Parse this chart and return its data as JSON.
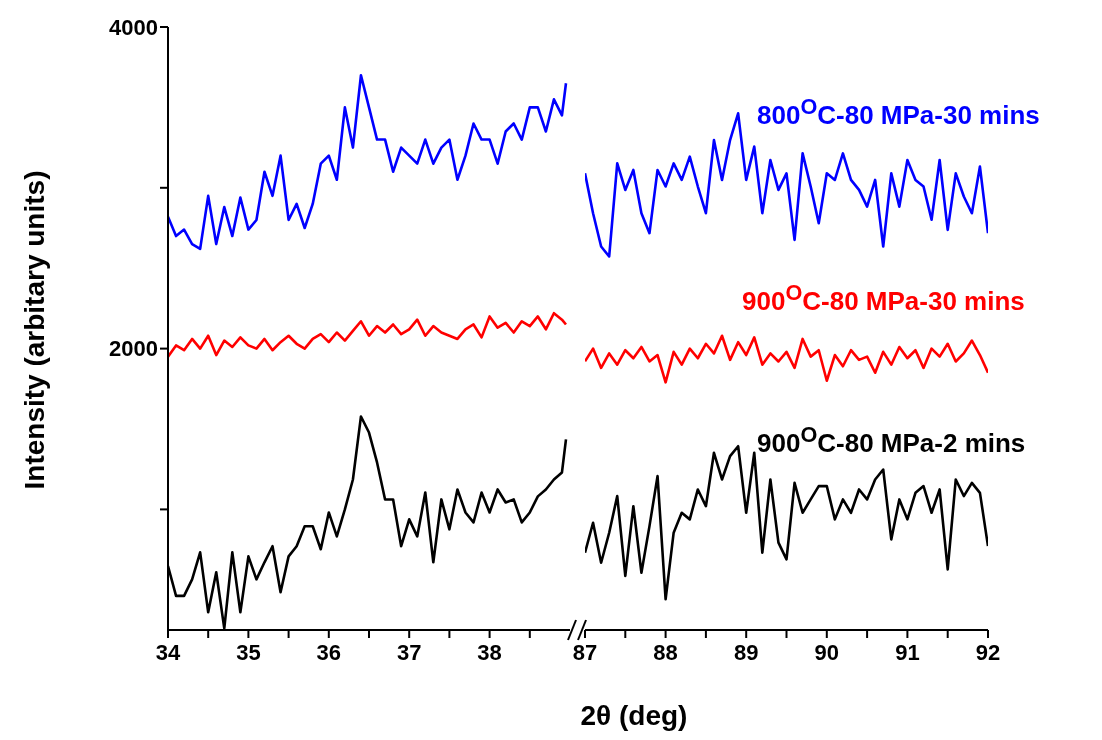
{
  "chart_data": [
    {
      "type": "line",
      "xlabel": "2θ (deg)",
      "ylabel": "Intensity (arbitary units)",
      "x": [
        34.0,
        34.1,
        34.2,
        34.3,
        34.4,
        34.5,
        34.6,
        34.7,
        34.8,
        34.9,
        35.0,
        35.1,
        35.2,
        35.3,
        35.4,
        35.5,
        35.6,
        35.7,
        35.8,
        35.9,
        36.0,
        36.1,
        36.2,
        36.3,
        36.4,
        36.5,
        36.6,
        36.7,
        36.8,
        36.9,
        37.0,
        37.1,
        37.2,
        37.3,
        37.4,
        37.5,
        37.6,
        37.7,
        37.8,
        37.9,
        38.0,
        38.1,
        38.2,
        38.3,
        38.4,
        38.5,
        38.6,
        38.7,
        38.8,
        38.9,
        38.95
      ],
      "series": [
        {
          "color": "#0000ff",
          "values": [
            2820,
            2700,
            2740,
            2650,
            2620,
            2950,
            2650,
            2880,
            2700,
            2940,
            2740,
            2800,
            3100,
            2950,
            3200,
            2800,
            2900,
            2750,
            2900,
            3150,
            3200,
            3050,
            3500,
            3250,
            3700,
            3500,
            3300,
            3300,
            3100,
            3250,
            3200,
            3150,
            3300,
            3150,
            3250,
            3300,
            3050,
            3200,
            3400,
            3300,
            3300,
            3150,
            3350,
            3400,
            3300,
            3500,
            3500,
            3350,
            3550,
            3450,
            3650
          ]
        },
        {
          "color": "#ff0000",
          "values": [
            1950,
            2020,
            1990,
            2060,
            2000,
            2080,
            1960,
            2050,
            2010,
            2070,
            2020,
            2000,
            2060,
            1990,
            2040,
            2080,
            2030,
            2000,
            2060,
            2090,
            2040,
            2100,
            2050,
            2110,
            2170,
            2080,
            2140,
            2100,
            2150,
            2090,
            2120,
            2180,
            2080,
            2140,
            2100,
            2080,
            2060,
            2120,
            2150,
            2070,
            2200,
            2130,
            2160,
            2100,
            2170,
            2140,
            2200,
            2120,
            2220,
            2180,
            2150
          ]
        },
        {
          "color": "#000000",
          "values": [
            648,
            462,
            462,
            565,
            733,
            360,
            609,
            260,
            733,
            360,
            708,
            565,
            671,
            771,
            485,
            708,
            771,
            895,
            895,
            752,
            981,
            832,
            1000,
            1186,
            1578,
            1478,
            1292,
            1062,
            1062,
            771,
            938,
            832,
            1105,
            671,
            1062,
            876,
            1124,
            981,
            919,
            1105,
            981,
            1124,
            1043,
            1062,
            919,
            981,
            1081,
            1124,
            1186,
            1230,
            1435
          ]
        }
      ],
      "xlim": [
        34,
        39
      ],
      "xticks": [
        34,
        {
          "value": 34.5,
          "label": null
        },
        35,
        {
          "value": 35.5,
          "label": null
        },
        36,
        {
          "value": 36.5,
          "label": null
        },
        37,
        {
          "value": 37.5,
          "label": null
        },
        38,
        {
          "value": 38.5,
          "label": null
        }
      ],
      "ylim": [
        250,
        4000
      ],
      "yticks": [
        {
          "value": 1000,
          "label": null
        },
        2000,
        {
          "value": 3000,
          "label": null
        },
        4000
      ]
    },
    {
      "type": "line",
      "tick_labels": "x",
      "x": [
        87.0,
        87.1,
        87.2,
        87.3,
        87.4,
        87.5,
        87.6,
        87.7,
        87.8,
        87.9,
        88.0,
        88.1,
        88.2,
        88.3,
        88.4,
        88.5,
        88.6,
        88.7,
        88.8,
        88.9,
        89.0,
        89.1,
        89.2,
        89.3,
        89.4,
        89.5,
        89.6,
        89.7,
        89.8,
        89.9,
        90.0,
        90.1,
        90.2,
        90.3,
        90.4,
        90.5,
        90.6,
        90.7,
        90.8,
        90.9,
        91.0,
        91.1,
        91.2,
        91.3,
        91.4,
        91.5,
        91.6,
        91.7,
        91.8,
        91.9,
        92.0
      ],
      "series": [
        {
          "name": "800$^{O}$C-80 MPa-30 mins",
          "color": "#0000ff",
          "values": [
            3090,
            2842,
            2635,
            2573,
            3152,
            2987,
            3111,
            2842,
            2718,
            3111,
            3008,
            3152,
            3049,
            3194,
            3008,
            2842,
            3297,
            3049,
            3297,
            3463,
            3049,
            3256,
            2842,
            3173,
            2987,
            3090,
            2676,
            3214,
            3008,
            2780,
            3090,
            3049,
            3214,
            3049,
            2987,
            2883,
            3049,
            2635,
            3090,
            2883,
            3173,
            3049,
            3008,
            2801,
            3173,
            2738,
            3090,
            2946,
            2842,
            3132,
            2718
          ]
        },
        {
          "name": "900$^{O}$C-80 MPa-30 mins",
          "color": "#ff0000",
          "values": [
            1921,
            2000,
            1880,
            1970,
            1900,
            1990,
            1940,
            2010,
            1920,
            1960,
            1790,
            1980,
            1900,
            2000,
            1940,
            2030,
            1970,
            2080,
            1930,
            2040,
            1960,
            2070,
            1900,
            1970,
            1920,
            1980,
            1880,
            2060,
            1950,
            1990,
            1800,
            1960,
            1890,
            1990,
            1930,
            1950,
            1850,
            1980,
            1900,
            2010,
            1940,
            1990,
            1880,
            2000,
            1950,
            2030,
            1920,
            1970,
            2050,
            1960,
            1850
          ]
        },
        {
          "name": "900$^{O}$C-80 MPa-2 mins",
          "color": "#000000",
          "values": [
            731,
            917,
            668,
            855,
            1083,
            586,
            1020,
            606,
            896,
            1207,
            441,
            855,
            979,
            938,
            1124,
            1020,
            1352,
            1186,
            1331,
            1393,
            979,
            1352,
            731,
            1186,
            793,
            689,
            1165,
            979,
            1062,
            1145,
            1145,
            938,
            1062,
            979,
            1124,
            1062,
            1186,
            1248,
            813,
            1062,
            938,
            1103,
            1145,
            979,
            1124,
            627,
            1186,
            1083,
            1165,
            1103,
            772
          ]
        }
      ],
      "xlim": [
        87,
        92
      ],
      "xticks": [
        87,
        {
          "value": 87.5,
          "label": null
        },
        88,
        {
          "value": 88.5,
          "label": null
        },
        89,
        {
          "value": 89.5,
          "label": null
        },
        90,
        {
          "value": 90.5,
          "label": null
        },
        91,
        {
          "value": 91.5,
          "label": null
        },
        92
      ],
      "ylim": [
        250,
        4000
      ]
    }
  ]
}
